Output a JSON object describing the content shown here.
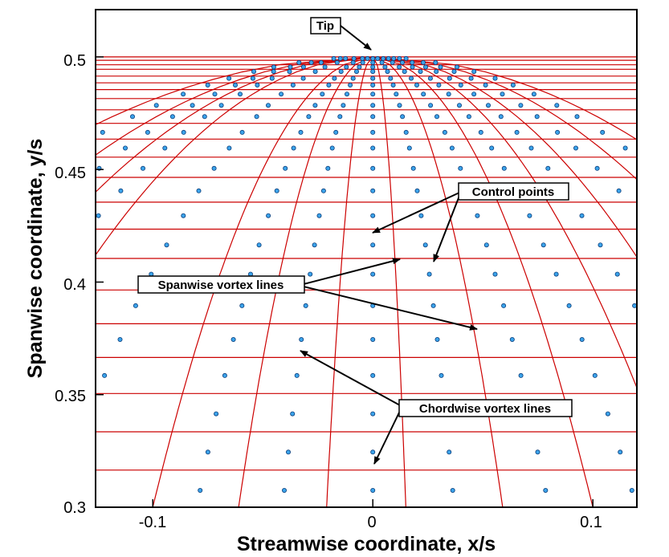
{
  "chart_data": {
    "type": "scatter",
    "xlabel": "Streamwise coordinate, x/s",
    "ylabel": "Spanwise coordinate, y/s",
    "xlim": [
      -0.126,
      0.12
    ],
    "ylim": [
      0.3,
      0.521
    ],
    "x_ticks": [
      -0.1,
      0,
      0.1
    ],
    "x_tick_labels": [
      "-0.1",
      "0",
      "0.1"
    ],
    "y_ticks": [
      0.3,
      0.35,
      0.4,
      0.45,
      0.5
    ],
    "y_tick_labels": [
      "0.3",
      "0.35",
      "0.4",
      "0.45",
      "0.5"
    ],
    "grid": false,
    "colors": {
      "vortex_lines": "#cc0000",
      "control_points_fill": "#3ba3ea",
      "control_points_edge": "#0b3d7a",
      "frame": "#000000",
      "annotation_box": "#ffffff"
    },
    "spanwise_vortex_lines_y": [
      0.3165,
      0.3335,
      0.3505,
      0.3665,
      0.3815,
      0.3965,
      0.4105,
      0.4235,
      0.4355,
      0.4465,
      0.4555,
      0.4635,
      0.4705,
      0.4765,
      0.4815,
      0.4855,
      0.4885,
      0.4915,
      0.4945,
      0.4965,
      0.4985,
      0.5
    ],
    "chordwise_vortex_lines_x_at_y03": [
      -0.325,
      -0.27,
      -0.23,
      -0.19,
      -0.1,
      -0.061,
      -0.021,
      0.015,
      0.059,
      0.1,
      0.14,
      0.18,
      0.23,
      0.28
    ],
    "control_points": {
      "rows_y": [
        0.3075,
        0.3245,
        0.3415,
        0.3585,
        0.3745,
        0.3895,
        0.4035,
        0.4165,
        0.4295,
        0.4405,
        0.4505,
        0.4595,
        0.4665,
        0.4735,
        0.4785,
        0.4835,
        0.4875,
        0.4905,
        0.4935,
        0.4955,
        0.4975,
        0.4993
      ],
      "cols_x_at_y03": [
        -0.3,
        -0.25,
        -0.21,
        -0.145,
        -0.08,
        -0.041,
        0,
        0.037,
        0.08,
        0.12,
        0.16,
        0.205,
        0.255
      ]
    },
    "annotations": [
      {
        "text": "Tip"
      },
      {
        "text": "Control points"
      },
      {
        "text": "Spanwise vortex lines"
      },
      {
        "text": "Chordwise vortex lines"
      }
    ]
  }
}
